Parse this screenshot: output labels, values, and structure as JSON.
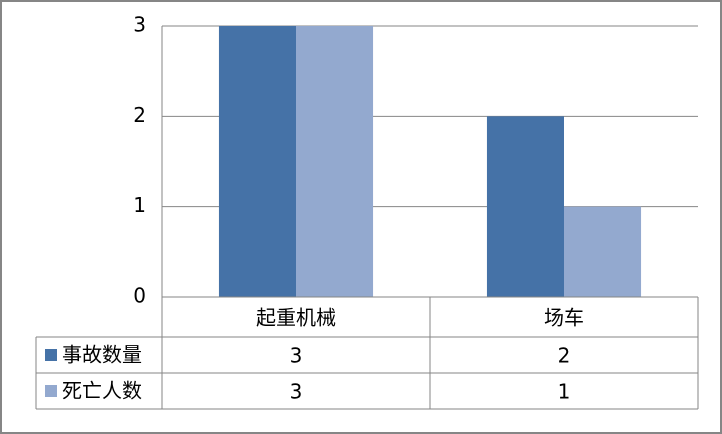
{
  "chart_data": {
    "type": "bar",
    "categories": [
      "起重机械",
      "场车"
    ],
    "series": [
      {
        "name": "事故数量",
        "color": "#4572a7",
        "values": [
          3,
          2
        ]
      },
      {
        "name": "死亡人数",
        "color": "#93a9cf",
        "values": [
          3,
          1
        ]
      }
    ],
    "ylim": [
      0,
      3
    ],
    "yticks": [
      0,
      1,
      2,
      3
    ],
    "grid": true,
    "data_table": true
  }
}
